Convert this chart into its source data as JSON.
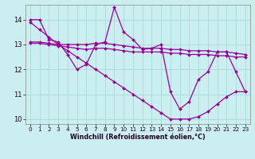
{
  "background_color": "#cbeef0",
  "grid_color": "#aadddd",
  "line_color": "#990099",
  "xlim": [
    -0.5,
    23.5
  ],
  "ylim": [
    9.8,
    14.6
  ],
  "yticks": [
    10,
    11,
    12,
    13,
    14
  ],
  "xticks": [
    0,
    1,
    2,
    3,
    4,
    5,
    6,
    7,
    8,
    9,
    10,
    11,
    12,
    13,
    14,
    15,
    16,
    17,
    18,
    19,
    20,
    21,
    22,
    23
  ],
  "xlabel": "Windchill (Refroidissement éolien,°C)",
  "series": [
    {
      "x": [
        0,
        1,
        2,
        3,
        4,
        5,
        6,
        7,
        8,
        9,
        10,
        11,
        12,
        13,
        14,
        15,
        16,
        17,
        18,
        19,
        20,
        21,
        22,
        23
      ],
      "y": [
        14.0,
        14.0,
        13.2,
        13.1,
        12.6,
        12.0,
        12.2,
        13.0,
        13.1,
        14.5,
        13.5,
        13.2,
        12.8,
        12.85,
        13.0,
        11.1,
        10.4,
        10.7,
        11.6,
        11.9,
        12.7,
        12.7,
        11.9,
        11.1
      ]
    },
    {
      "x": [
        0,
        1,
        2,
        3,
        4,
        5,
        6,
        7,
        8,
        9,
        10,
        11,
        12,
        13,
        14,
        15,
        16,
        17,
        18,
        19,
        20,
        21,
        22,
        23
      ],
      "y": [
        13.9,
        13.6,
        13.3,
        13.0,
        12.75,
        12.5,
        12.25,
        12.0,
        11.75,
        11.5,
        11.25,
        11.0,
        10.75,
        10.5,
        10.25,
        10.0,
        10.0,
        10.0,
        10.1,
        10.3,
        10.6,
        10.9,
        11.1,
        11.1
      ]
    },
    {
      "x": [
        0,
        1,
        2,
        3,
        4,
        5,
        6,
        7,
        8,
        9,
        10,
        11,
        12,
        13,
        14,
        15,
        16,
        17,
        18,
        19,
        20,
        21,
        22,
        23
      ],
      "y": [
        13.1,
        13.1,
        13.05,
        13.0,
        13.0,
        13.0,
        13.0,
        13.05,
        13.05,
        13.0,
        12.95,
        12.9,
        12.85,
        12.85,
        12.85,
        12.8,
        12.8,
        12.75,
        12.75,
        12.75,
        12.7,
        12.7,
        12.65,
        12.6
      ]
    },
    {
      "x": [
        0,
        1,
        2,
        3,
        4,
        5,
        6,
        7,
        8,
        9,
        10,
        11,
        12,
        13,
        14,
        15,
        16,
        17,
        18,
        19,
        20,
        21,
        22,
        23
      ],
      "y": [
        13.05,
        13.05,
        13.0,
        12.95,
        12.9,
        12.85,
        12.8,
        12.85,
        12.85,
        12.8,
        12.75,
        12.7,
        12.7,
        12.7,
        12.7,
        12.65,
        12.65,
        12.6,
        12.6,
        12.6,
        12.55,
        12.55,
        12.5,
        12.5
      ]
    }
  ]
}
